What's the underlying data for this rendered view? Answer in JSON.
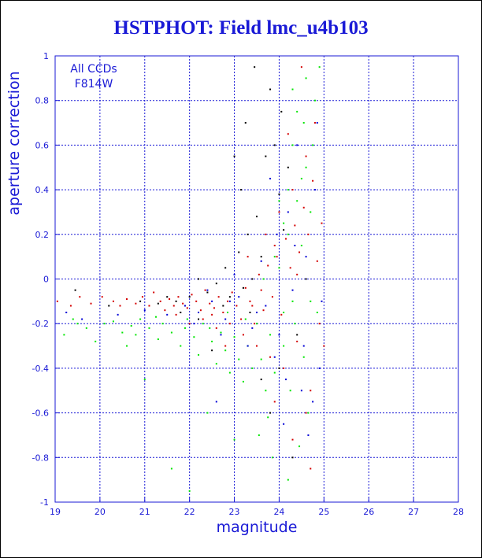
{
  "chart_data": {
    "type": "scatter",
    "title": "HSTPHOT: Field lmc_u4b103",
    "xlabel": "magnitude",
    "ylabel": "aperture correction",
    "xlim": [
      19,
      28
    ],
    "ylim": [
      -1,
      1
    ],
    "x_ticks": [
      "19",
      "20",
      "21",
      "22",
      "23",
      "24",
      "25",
      "26",
      "27",
      "28"
    ],
    "y_ticks": [
      "-1",
      "-0.8",
      "-0.6",
      "-0.4",
      "-0.2",
      "0",
      "0.2",
      "0.4",
      "0.6",
      "0.8",
      "1"
    ],
    "grid": true,
    "annotations": [
      "All CCDs",
      "F814W"
    ],
    "annotation_position": "top-left",
    "colors": {
      "axes": "#1a1ad6",
      "grid": "#1a1ad6",
      "title": "#1a1ad6",
      "text": "#1a1ad6"
    },
    "series": [
      {
        "color": "#d40000",
        "points": [
          [
            19.05,
            -0.1
          ],
          [
            19.35,
            -0.12
          ],
          [
            19.55,
            -0.08
          ],
          [
            19.8,
            -0.11
          ],
          [
            20.05,
            -0.08
          ],
          [
            20.3,
            -0.1
          ],
          [
            20.45,
            -0.12
          ],
          [
            20.6,
            -0.09
          ],
          [
            20.8,
            -0.11
          ],
          [
            20.95,
            -0.08
          ],
          [
            21.1,
            -0.12
          ],
          [
            21.2,
            -0.06
          ],
          [
            21.35,
            -0.1
          ],
          [
            21.45,
            -0.14
          ],
          [
            21.55,
            -0.09
          ],
          [
            21.65,
            -0.12
          ],
          [
            21.75,
            -0.08
          ],
          [
            21.85,
            -0.11
          ],
          [
            21.95,
            -0.13
          ],
          [
            22.05,
            -0.07
          ],
          [
            22.15,
            -0.1
          ],
          [
            22.25,
            -0.14
          ],
          [
            22.35,
            -0.05
          ],
          [
            22.45,
            -0.11
          ],
          [
            22.55,
            -0.13
          ],
          [
            22.65,
            -0.08
          ],
          [
            22.75,
            -0.15
          ],
          [
            22.85,
            -0.1
          ],
          [
            22.95,
            -0.06
          ],
          [
            23.05,
            -0.12
          ],
          [
            23.15,
            -0.18
          ],
          [
            23.25,
            -0.04
          ],
          [
            23.35,
            -0.1
          ],
          [
            23.45,
            -0.2
          ],
          [
            23.55,
            0.02
          ],
          [
            23.65,
            -0.14
          ],
          [
            23.75,
            0.06
          ],
          [
            23.85,
            -0.08
          ],
          [
            23.95,
            0.1
          ],
          [
            24.05,
            -0.16
          ],
          [
            24.15,
            0.18
          ],
          [
            24.25,
            0.05
          ],
          [
            24.35,
            0.24
          ],
          [
            24.45,
            0.12
          ],
          [
            24.55,
            0.32
          ],
          [
            24.65,
            0.2
          ],
          [
            24.75,
            0.44
          ],
          [
            24.85,
            0.08
          ],
          [
            22.3,
            -0.18
          ],
          [
            22.6,
            -0.22
          ],
          [
            22.9,
            -0.2
          ],
          [
            23.2,
            -0.25
          ],
          [
            23.5,
            -0.3
          ],
          [
            23.8,
            -0.35
          ],
          [
            24.1,
            -0.4
          ],
          [
            24.4,
            -0.28
          ],
          [
            24.7,
            -0.5
          ],
          [
            24.9,
            -0.2
          ],
          [
            23.3,
            0.1
          ],
          [
            23.7,
            0.2
          ],
          [
            24.0,
            0.3
          ],
          [
            24.3,
            0.4
          ],
          [
            24.6,
            0.55
          ],
          [
            24.8,
            0.7
          ],
          [
            24.5,
            0.95
          ],
          [
            24.2,
            0.65
          ],
          [
            23.9,
            0.15
          ],
          [
            23.6,
            -0.05
          ],
          [
            22.0,
            -0.2
          ],
          [
            21.7,
            -0.16
          ],
          [
            22.8,
            -0.3
          ],
          [
            24.6,
            -0.6
          ],
          [
            24.3,
            -0.72
          ],
          [
            23.9,
            -0.55
          ],
          [
            24.7,
            -0.85
          ],
          [
            24.95,
            0.25
          ],
          [
            25.0,
            -0.3
          ],
          [
            24.4,
            0.02
          ],
          [
            23.4,
            -0.12
          ],
          [
            22.5,
            -0.16
          ]
        ]
      },
      {
        "color": "#00e600",
        "points": [
          [
            19.2,
            -0.25
          ],
          [
            19.5,
            -0.2
          ],
          [
            19.7,
            -0.22
          ],
          [
            19.9,
            -0.28
          ],
          [
            20.1,
            -0.2
          ],
          [
            20.3,
            -0.19
          ],
          [
            20.5,
            -0.24
          ],
          [
            20.7,
            -0.21
          ],
          [
            20.9,
            -0.18
          ],
          [
            21.1,
            -0.22
          ],
          [
            21.3,
            -0.27
          ],
          [
            21.4,
            -0.2
          ],
          [
            21.6,
            -0.24
          ],
          [
            21.8,
            -0.3
          ],
          [
            21.9,
            -0.22
          ],
          [
            22.1,
            -0.26
          ],
          [
            22.2,
            -0.34
          ],
          [
            22.3,
            -0.2
          ],
          [
            22.5,
            -0.28
          ],
          [
            22.6,
            -0.38
          ],
          [
            22.7,
            -0.24
          ],
          [
            22.8,
            -0.32
          ],
          [
            22.9,
            -0.42
          ],
          [
            23.0,
            -0.26
          ],
          [
            23.1,
            -0.36
          ],
          [
            23.2,
            -0.46
          ],
          [
            23.3,
            -0.3
          ],
          [
            23.4,
            -0.4
          ],
          [
            23.5,
            -0.2
          ],
          [
            23.6,
            -0.36
          ],
          [
            23.7,
            -0.5
          ],
          [
            23.8,
            -0.25
          ],
          [
            23.9,
            -0.42
          ],
          [
            24.0,
            0.05
          ],
          [
            24.1,
            -0.3
          ],
          [
            24.2,
            0.2
          ],
          [
            24.3,
            -0.1
          ],
          [
            24.4,
            0.35
          ],
          [
            24.5,
            0.15
          ],
          [
            24.6,
            0.5
          ],
          [
            24.7,
            0.3
          ],
          [
            24.8,
            0.8
          ],
          [
            24.4,
            0.75
          ],
          [
            24.6,
            0.9
          ],
          [
            24.3,
            0.6
          ],
          [
            24.5,
            0.45
          ],
          [
            24.2,
            0.4
          ],
          [
            24.1,
            0.25
          ],
          [
            23.9,
            0.1
          ],
          [
            24.35,
            -0.2
          ],
          [
            24.55,
            -0.35
          ],
          [
            24.65,
            -0.6
          ],
          [
            24.45,
            -0.75
          ],
          [
            24.25,
            -0.5
          ],
          [
            23.75,
            -0.62
          ],
          [
            23.55,
            -0.7
          ],
          [
            21.6,
            -0.85
          ],
          [
            22.0,
            -0.95
          ],
          [
            23.0,
            -0.72
          ],
          [
            22.4,
            -0.6
          ],
          [
            21.0,
            -0.45
          ],
          [
            20.6,
            -0.3
          ],
          [
            19.4,
            -0.18
          ],
          [
            24.75,
            0.6
          ],
          [
            24.9,
            0.95
          ],
          [
            24.85,
            -0.15
          ],
          [
            24.7,
            -0.1
          ],
          [
            24.1,
            -0.15
          ],
          [
            23.25,
            -0.18
          ],
          [
            22.85,
            -0.15
          ],
          [
            22.45,
            -0.22
          ],
          [
            21.95,
            -0.18
          ],
          [
            21.25,
            -0.17
          ],
          [
            20.8,
            -0.25
          ],
          [
            24.0,
            0.35
          ],
          [
            24.3,
            0.85
          ],
          [
            24.55,
            0.7
          ],
          [
            23.85,
            -0.8
          ],
          [
            24.2,
            -0.9
          ],
          [
            23.65,
            0.0
          ]
        ]
      },
      {
        "color": "#0000d6",
        "points": [
          [
            19.25,
            -0.15
          ],
          [
            19.6,
            -0.18
          ],
          [
            20.4,
            -0.16
          ],
          [
            21.0,
            -0.14
          ],
          [
            21.5,
            -0.16
          ],
          [
            21.9,
            -0.12
          ],
          [
            22.2,
            -0.15
          ],
          [
            22.5,
            -0.1
          ],
          [
            22.8,
            -0.18
          ],
          [
            23.1,
            -0.08
          ],
          [
            23.4,
            -0.22
          ],
          [
            23.7,
            -0.12
          ],
          [
            24.0,
            -0.25
          ],
          [
            24.3,
            -0.05
          ],
          [
            24.6,
            0.1
          ],
          [
            24.9,
            -0.4
          ],
          [
            24.8,
            0.4
          ],
          [
            24.5,
            -0.5
          ],
          [
            24.2,
            0.3
          ],
          [
            23.9,
            -0.35
          ],
          [
            23.6,
            0.08
          ],
          [
            23.3,
            -0.3
          ],
          [
            23.0,
            0.02
          ],
          [
            22.7,
            -0.25
          ],
          [
            22.4,
            -0.05
          ],
          [
            22.1,
            -0.2
          ],
          [
            24.65,
            -0.7
          ],
          [
            24.4,
            0.6
          ],
          [
            24.1,
            -0.65
          ],
          [
            23.8,
            0.45
          ],
          [
            24.75,
            -0.55
          ],
          [
            22.6,
            -0.55
          ],
          [
            24.95,
            -0.1
          ],
          [
            24.35,
            0.15
          ],
          [
            23.5,
            -0.15
          ],
          [
            22.9,
            -0.1
          ],
          [
            24.55,
            -0.3
          ],
          [
            24.15,
            -0.45
          ],
          [
            23.95,
            0.2
          ],
          [
            24.85,
            0.7
          ]
        ]
      },
      {
        "color": "#000000",
        "points": [
          [
            19.45,
            -0.05
          ],
          [
            20.2,
            -0.12
          ],
          [
            20.9,
            -0.1
          ],
          [
            21.3,
            -0.11
          ],
          [
            21.7,
            -0.1
          ],
          [
            22.0,
            -0.08
          ],
          [
            22.2,
            0.0
          ],
          [
            22.4,
            -0.06
          ],
          [
            22.6,
            -0.02
          ],
          [
            22.8,
            0.05
          ],
          [
            22.9,
            -0.08
          ],
          [
            23.1,
            0.12
          ],
          [
            23.2,
            -0.04
          ],
          [
            23.3,
            0.2
          ],
          [
            23.4,
            0.0
          ],
          [
            23.5,
            0.28
          ],
          [
            23.6,
            0.1
          ],
          [
            23.7,
            0.55
          ],
          [
            23.8,
            0.85
          ],
          [
            23.9,
            0.6
          ],
          [
            24.0,
            0.38
          ],
          [
            24.1,
            0.22
          ],
          [
            23.45,
            0.95
          ],
          [
            23.25,
            0.7
          ],
          [
            23.0,
            0.55
          ],
          [
            23.15,
            0.4
          ],
          [
            24.2,
            0.5
          ],
          [
            24.0,
            -0.4
          ],
          [
            23.8,
            -0.6
          ],
          [
            24.3,
            -0.8
          ],
          [
            23.6,
            -0.45
          ],
          [
            22.5,
            -0.32
          ],
          [
            22.2,
            -0.18
          ],
          [
            21.8,
            -0.15
          ],
          [
            24.4,
            -0.25
          ],
          [
            24.6,
            0.0
          ],
          [
            24.05,
            0.75
          ],
          [
            23.35,
            -0.15
          ],
          [
            22.75,
            -0.12
          ],
          [
            21.5,
            -0.08
          ]
        ]
      }
    ]
  }
}
